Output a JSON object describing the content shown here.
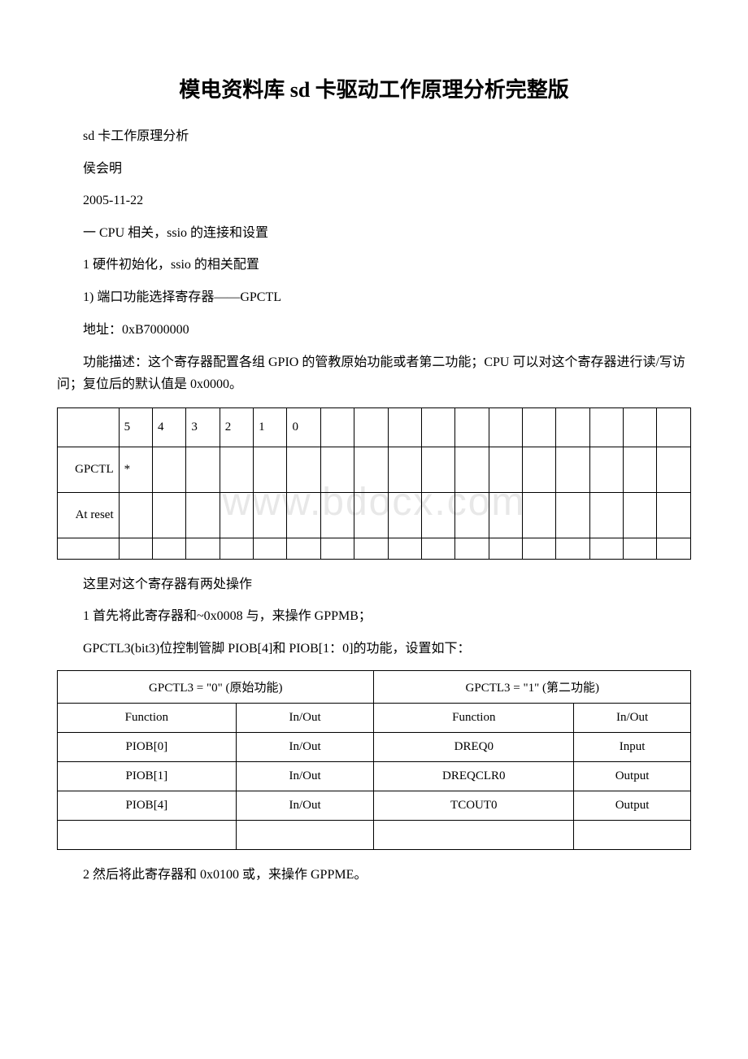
{
  "title": "模电资料库 sd 卡驱动工作原理分析完整版",
  "lines": {
    "l1": "sd 卡工作原理分析",
    "l2": "侯会明",
    "l3": "2005-11-22",
    "l4": "一 CPU 相关，ssio 的连接和设置",
    "l5": "1 硬件初始化，ssio 的相关配置",
    "l6": "1) 端口功能选择寄存器——GPCTL",
    "l7": "地址：0xB7000000"
  },
  "para1": "功能描述：这个寄存器配置各组 GPIO 的管教原始功能或者第二功能；CPU 可以对这个寄存器进行读/写访问；复位后的默认值是 0x0000。",
  "reg_table": {
    "border_color": "#000000",
    "rows": [
      {
        "label": "",
        "cells": [
          "5",
          "4",
          "3",
          "2",
          "1",
          "0",
          "",
          "",
          "",
          "",
          "",
          "",
          "",
          "",
          "",
          "",
          ""
        ]
      },
      {
        "label": "GPCTL",
        "cells": [
          "*",
          "",
          "",
          "",
          "",
          "",
          "",
          "",
          "",
          "",
          "",
          "",
          "",
          "",
          "",
          "",
          ""
        ]
      },
      {
        "label": "At reset",
        "cells": [
          "",
          "",
          "",
          "",
          "",
          "",
          "",
          "",
          "",
          "",
          "",
          "",
          "",
          "",
          "",
          "",
          ""
        ]
      },
      {
        "label": "",
        "cells": [
          "",
          "",
          "",
          "",
          "",
          "",
          "",
          "",
          "",
          "",
          "",
          "",
          "",
          "",
          "",
          "",
          ""
        ]
      }
    ]
  },
  "mid_lines": {
    "m1": "这里对这个寄存器有两处操作",
    "m2": "1 首先将此寄存器和~0x0008 与，来操作 GPPMB；",
    "m3": "GPCTL3(bit3)位控制管脚 PIOB[4]和 PIOB[1：0]的功能，设置如下："
  },
  "func_table": {
    "header": {
      "c1": "GPCTL3 = \"0\" (原始功能)",
      "c2": "GPCTL3 = \"1\" (第二功能)"
    },
    "sub": {
      "a": "Function",
      "b": "In/Out",
      "c": "Function",
      "d": "In/Out"
    },
    "rows": [
      {
        "a": "PIOB[0]",
        "b": "In/Out",
        "c": "DREQ0",
        "d": "Input"
      },
      {
        "a": "PIOB[1]",
        "b": "In/Out",
        "c": "DREQCLR0",
        "d": "Output"
      },
      {
        "a": "PIOB[4]",
        "b": "In/Out",
        "c": "TCOUT0",
        "d": "Output"
      },
      {
        "a": "",
        "b": "",
        "c": "",
        "d": ""
      }
    ]
  },
  "last_line": "2 然后将此寄存器和 0x0100 或，来操作 GPPME。",
  "watermark": "www.bdocx.com",
  "colors": {
    "text": "#000000",
    "watermark": "#e8e8e8",
    "background": "#ffffff",
    "border": "#000000"
  },
  "typography": {
    "title_fontsize": 26,
    "body_fontsize": 16,
    "table_fontsize": 15,
    "watermark_fontsize": 48
  }
}
